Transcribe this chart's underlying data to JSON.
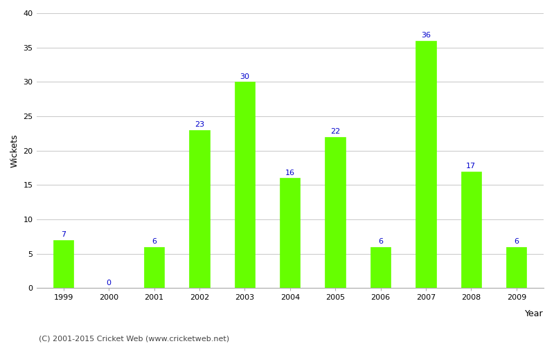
{
  "years": [
    1999,
    2000,
    2001,
    2002,
    2003,
    2004,
    2005,
    2006,
    2007,
    2008,
    2009
  ],
  "wickets": [
    7,
    0,
    6,
    23,
    30,
    16,
    22,
    6,
    36,
    17,
    6
  ],
  "bar_color": "#66ff00",
  "bar_edge_color": "#66ff00",
  "label_color": "#0000cc",
  "xlabel": "Year",
  "ylabel": "Wickets",
  "ylim": [
    0,
    40
  ],
  "yticks": [
    0,
    5,
    10,
    15,
    20,
    25,
    30,
    35,
    40
  ],
  "background_color": "#ffffff",
  "grid_color": "#cccccc",
  "footer": "(C) 2001-2015 Cricket Web (www.cricketweb.net)",
  "label_fontsize": 8,
  "axis_label_fontsize": 9,
  "tick_fontsize": 8,
  "footer_fontsize": 8
}
